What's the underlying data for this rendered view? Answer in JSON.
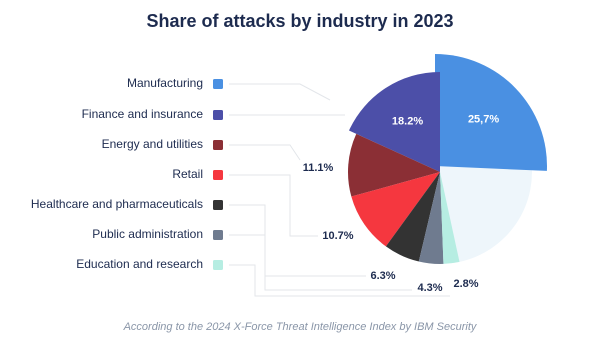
{
  "chart_data": {
    "type": "pie",
    "title": "Share of attacks by industry in 2023",
    "categories": [
      "Manufacturing",
      "Finance and insurance",
      "Energy and utilities",
      "Retail",
      "Healthcare and pharmaceuticals",
      "Public administration",
      "Education and research"
    ],
    "values": [
      25.7,
      18.2,
      11.1,
      10.7,
      6.3,
      4.3,
      2.8
    ],
    "value_labels": [
      "25,7%",
      "18.2%",
      "11.1%",
      "10.7%",
      "6.3%",
      "4.3%",
      "2.8%"
    ],
    "colors": [
      "#4a90e2",
      "#4c4fa8",
      "#8b2f35",
      "#f5373f",
      "#333333",
      "#6f7b8f",
      "#b6ede2"
    ],
    "note": "According to the 2024 X-Force Threat Intelligence Index by IBM Security"
  }
}
